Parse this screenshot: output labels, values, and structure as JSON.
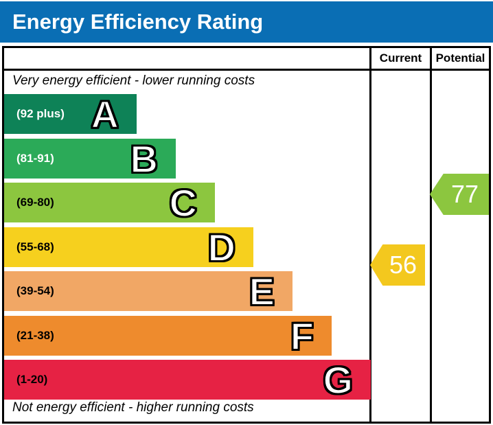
{
  "title": "Energy Efficiency Rating",
  "table": {
    "columns": [
      {
        "id": "current",
        "label": "Current"
      },
      {
        "id": "potential",
        "label": "Potential"
      }
    ],
    "top_caption": "Very energy efficient - lower running costs",
    "bottom_caption": "Not energy efficient - higher running costs"
  },
  "bands": [
    {
      "letter": "A",
      "range": "(92 plus)",
      "color": "#0e8257",
      "range_text_color": "#ffffff"
    },
    {
      "letter": "B",
      "range": "(81-91)",
      "color": "#2baa58",
      "range_text_color": "#ffffff"
    },
    {
      "letter": "C",
      "range": "(69-80)",
      "color": "#8cc63f",
      "range_text_color": "#000000"
    },
    {
      "letter": "D",
      "range": "(55-68)",
      "color": "#f6d01e",
      "range_text_color": "#000000"
    },
    {
      "letter": "E",
      "range": "(39-54)",
      "color": "#f1a765",
      "range_text_color": "#000000"
    },
    {
      "letter": "F",
      "range": "(21-38)",
      "color": "#ee8b2d",
      "range_text_color": "#000000"
    },
    {
      "letter": "G",
      "range": "(1-20)",
      "color": "#e62244",
      "range_text_color": "#000000"
    }
  ],
  "ratings": {
    "current": {
      "value": "56",
      "band": "D",
      "arrow_color": "#f3c81e"
    },
    "potential": {
      "value": "77",
      "band": "C",
      "arrow_color": "#8cc63f"
    }
  },
  "colors": {
    "title_bg": "#0a6eb4",
    "title_text": "#ffffff",
    "border": "#000000"
  },
  "chart_data": {
    "type": "bar",
    "title": "Energy Efficiency Rating",
    "orientation": "horizontal",
    "bands": [
      {
        "letter": "A",
        "label": "(92 plus)",
        "range_min": 92,
        "range_max": 100
      },
      {
        "letter": "B",
        "label": "(81-91)",
        "range_min": 81,
        "range_max": 91
      },
      {
        "letter": "C",
        "label": "(69-80)",
        "range_min": 69,
        "range_max": 80
      },
      {
        "letter": "D",
        "label": "(55-68)",
        "range_min": 55,
        "range_max": 68
      },
      {
        "letter": "E",
        "label": "(39-54)",
        "range_min": 39,
        "range_max": 54
      },
      {
        "letter": "F",
        "label": "(21-38)",
        "range_min": 21,
        "range_max": 38
      },
      {
        "letter": "G",
        "label": "(1-20)",
        "range_min": 1,
        "range_max": 20
      }
    ],
    "current": {
      "value": 56,
      "band": "D"
    },
    "potential": {
      "value": 77,
      "band": "C"
    },
    "annotations": [
      "Very energy efficient - lower running costs",
      "Not energy efficient - higher running costs"
    ],
    "legend_position": "none",
    "grid": false
  }
}
